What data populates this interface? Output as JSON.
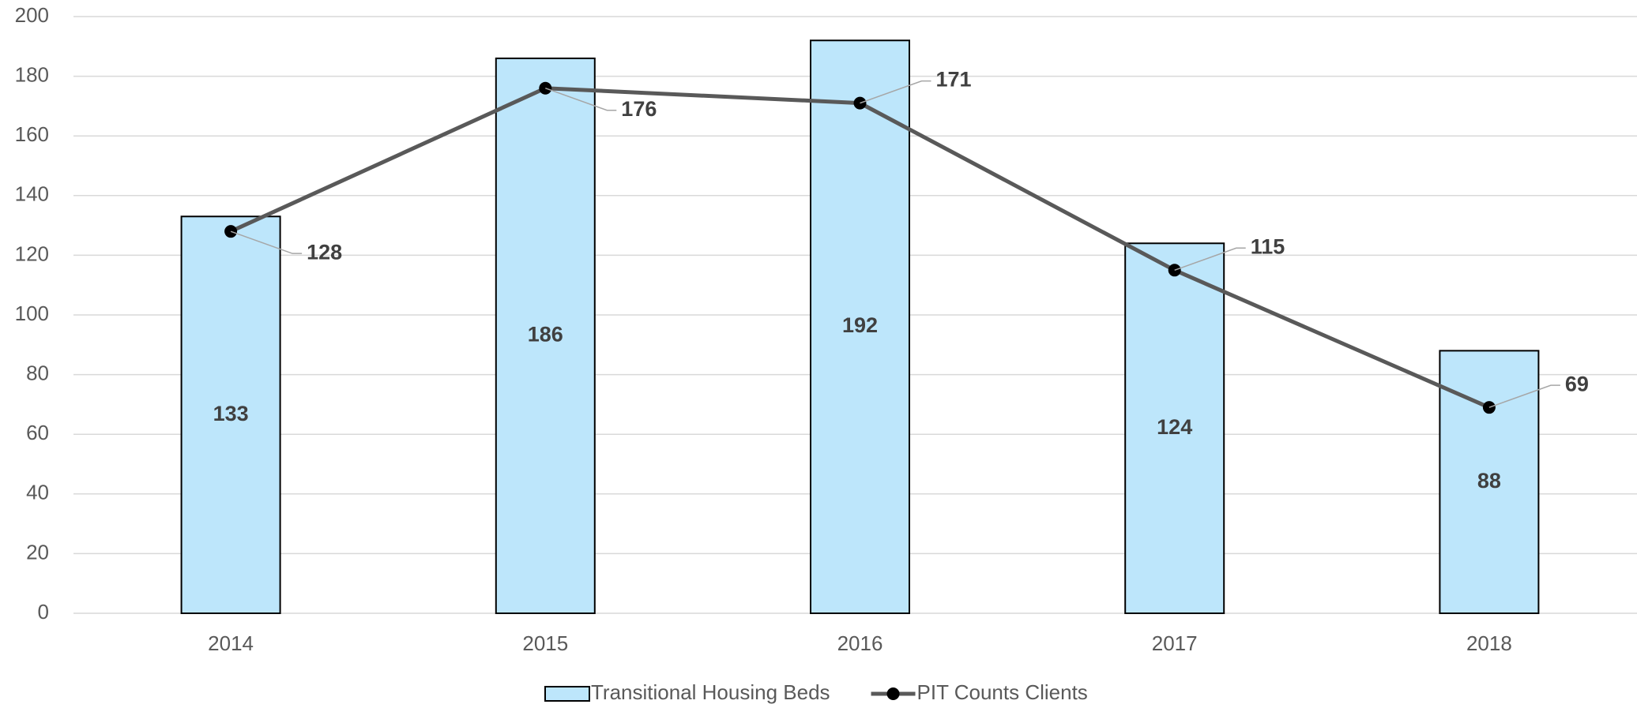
{
  "chart_data": {
    "type": "bar-line",
    "categories": [
      "2014",
      "2015",
      "2016",
      "2017",
      "2018"
    ],
    "series": [
      {
        "name": "Transitional Housing Beds",
        "type": "bar",
        "color": "#bde6fb",
        "values": [
          133,
          186,
          192,
          124,
          88
        ]
      },
      {
        "name": "PIT Counts Clients",
        "type": "line",
        "color": "#595959",
        "values": [
          128,
          176,
          171,
          115,
          69
        ]
      }
    ],
    "ylim": [
      0,
      200
    ],
    "yticks": [
      0,
      20,
      40,
      60,
      80,
      100,
      120,
      140,
      160,
      180,
      200
    ],
    "grid": true,
    "legend": "bottom"
  }
}
